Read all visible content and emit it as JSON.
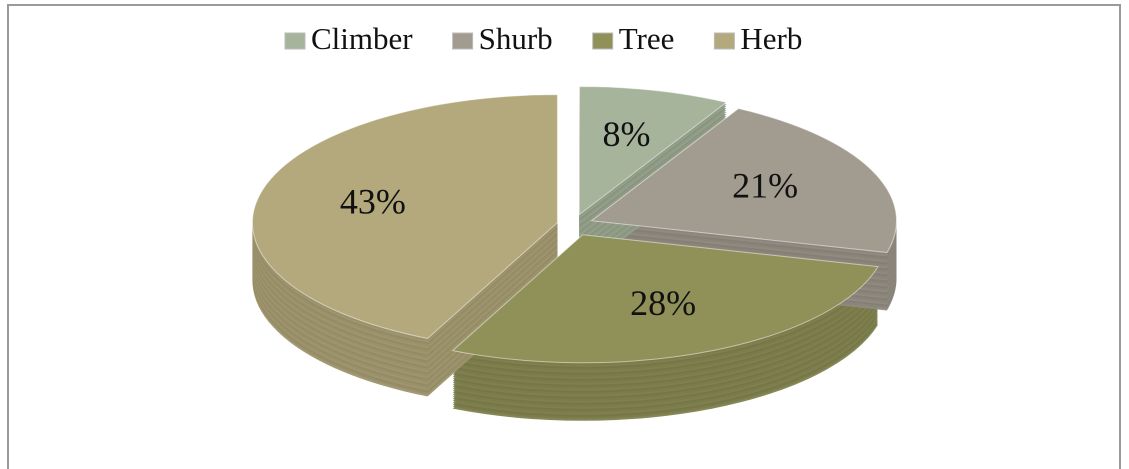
{
  "chart_data": {
    "type": "pie3d",
    "categories": [
      "Climber",
      "Shurb",
      "Tree",
      "Herb"
    ],
    "values": [
      8,
      21,
      28,
      43
    ],
    "value_labels": [
      "8%",
      "21%",
      "28%",
      "43%"
    ],
    "colors": [
      "#a7b49c",
      "#a29c90",
      "#8f9158",
      "#b3a97c"
    ],
    "legend": "top"
  }
}
